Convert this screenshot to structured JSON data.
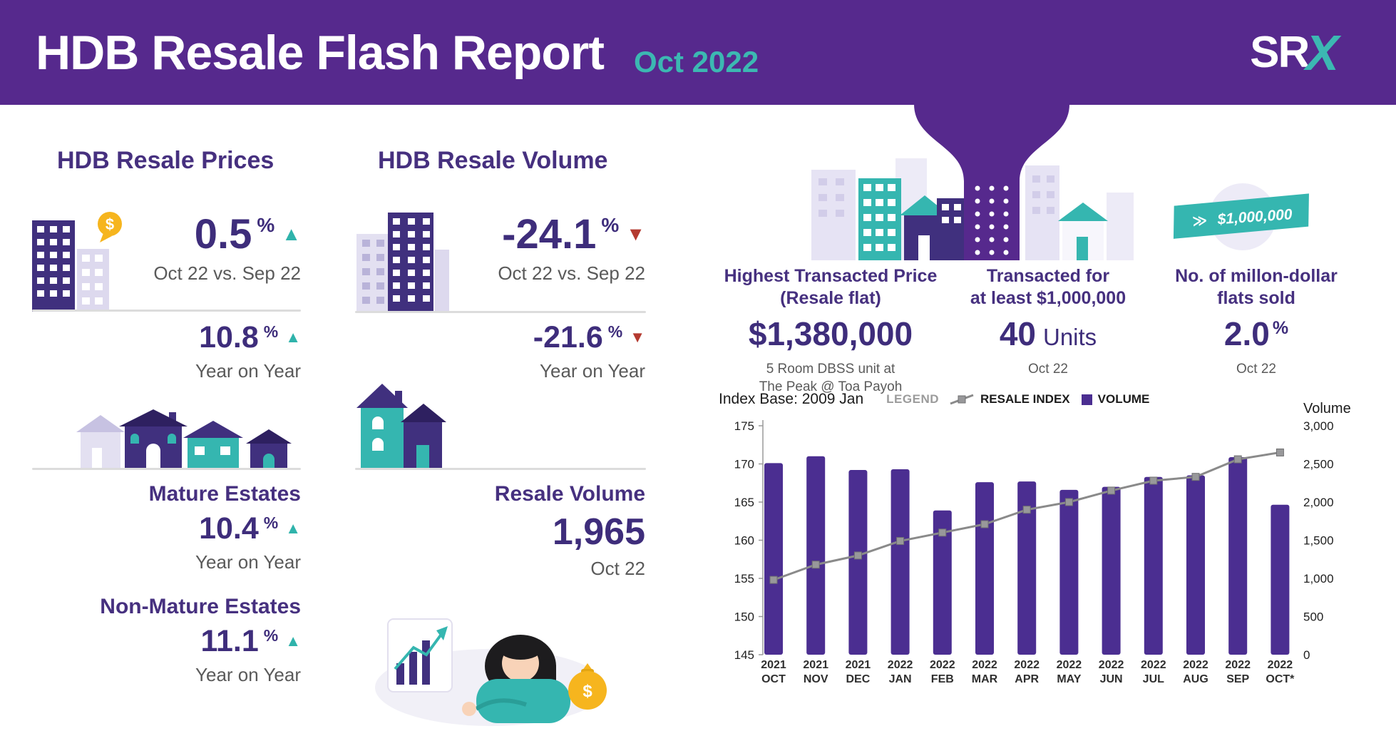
{
  "colors": {
    "header_purple": "#56298d",
    "heading_purple": "#46307f",
    "ink_purple": "#3e2d7b",
    "teal": "#2fb3ab",
    "red": "#b43a30",
    "gray_text": "#5a5a5a",
    "bar_purple": "#4b2e91",
    "line_gray": "#8a8a8a",
    "yellow": "#f6b51e"
  },
  "icons": {
    "dollar": "$"
  },
  "header": {
    "title": "HDB Resale Flash Report",
    "period": "Oct 2022",
    "logo_sr": "SR",
    "logo_x": "X"
  },
  "prices": {
    "heading": "HDB Resale Prices",
    "mom": {
      "value": "0.5",
      "unit": "%",
      "direction": "up",
      "caption": "Oct 22 vs. Sep 22"
    },
    "yoy": {
      "value": "10.8",
      "unit": "%",
      "direction": "up",
      "caption": "Year on Year"
    },
    "mature": {
      "label": "Mature Estates",
      "value": "10.4",
      "unit": "%",
      "direction": "up",
      "caption": "Year on Year"
    },
    "non_mature": {
      "label": "Non-Mature Estates",
      "value": "11.1",
      "unit": "%",
      "direction": "up",
      "caption": "Year on Year"
    }
  },
  "volume": {
    "heading": "HDB Resale Volume",
    "mom": {
      "value": "-24.1",
      "unit": "%",
      "direction": "down",
      "caption": "Oct 22 vs. Sep 22"
    },
    "yoy": {
      "value": "-21.6",
      "unit": "%",
      "direction": "down",
      "caption": "Year on Year"
    },
    "resale": {
      "label": "Resale Volume",
      "value": "1,965",
      "caption": "Oct 22"
    }
  },
  "highlights": {
    "highest": {
      "title_line1": "Highest Transacted Price",
      "title_line2": "(Resale flat)",
      "value": "$1,380,000",
      "detail_line1": "5 Room DBSS unit at",
      "detail_line2": "The Peak @ Toa Payoh"
    },
    "million_units": {
      "title_line1": "Transacted for",
      "title_line2": "at least $1,000,000",
      "value": "40",
      "suffix": "Units",
      "caption": "Oct 22"
    },
    "million_share": {
      "title_line1": "No. of millon-dollar",
      "title_line2": "flats sold",
      "value": "2.0",
      "unit": "%",
      "caption": "Oct 22"
    },
    "ribbon_chevron": "≫",
    "ribbon_text": "$1,000,000"
  },
  "chart": {
    "index_base": "Index Base: 2009 Jan",
    "legend_title": "LEGEND",
    "right_axis_title": "Volume"
  },
  "chart_data": {
    "type": "combo",
    "title": "Index Base: 2009 Jan",
    "categories": [
      "2021 OCT",
      "2021 NOV",
      "2021 DEC",
      "2022 JAN",
      "2022 FEB",
      "2022 MAR",
      "2022 APR",
      "2022 MAY",
      "2022 JUN",
      "2022 JUL",
      "2022 AUG",
      "2022 SEP",
      "2022 OCT*"
    ],
    "series": [
      {
        "name": "RESALE INDEX",
        "type": "line",
        "axis": "left",
        "color": "#8a8a8a",
        "values": [
          154.8,
          156.8,
          158.0,
          159.9,
          161.0,
          162.1,
          164.0,
          165.0,
          166.5,
          167.8,
          168.3,
          170.6,
          171.5
        ]
      },
      {
        "name": "VOLUME",
        "type": "bar",
        "axis": "right",
        "color": "#4b2e91",
        "values": [
          2510,
          2600,
          2420,
          2430,
          1890,
          2260,
          2270,
          2160,
          2200,
          2330,
          2350,
          2589,
          1965
        ]
      }
    ],
    "axes": {
      "left": {
        "min": 145,
        "max": 175,
        "step": 5
      },
      "right": {
        "min": 0,
        "max": 3000,
        "step": 500,
        "title": "Volume"
      }
    },
    "legend_position": "top",
    "grid": false
  }
}
